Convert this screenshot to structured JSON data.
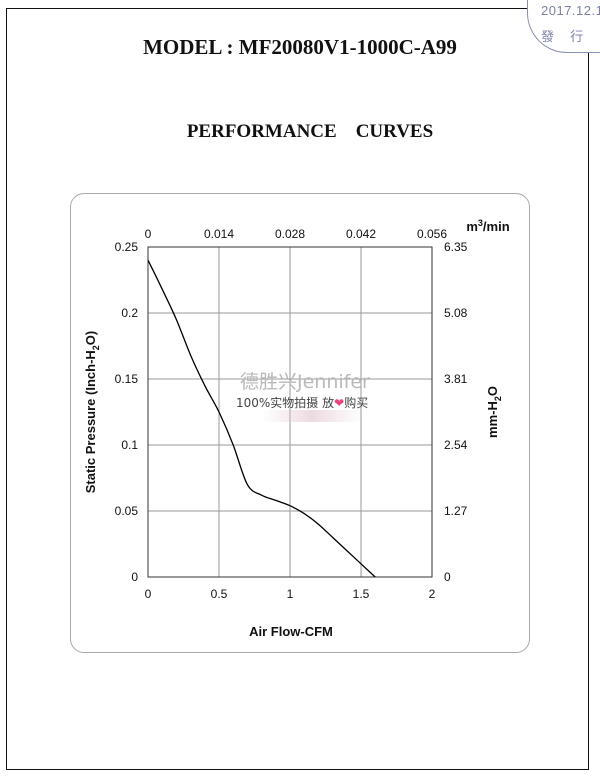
{
  "stamp": {
    "date": "2017.12.1",
    "text": "發 行 文"
  },
  "header": {
    "model": "MODEL : MF20080V1-1000C-A99",
    "subtitle": "PERFORMANCE    CURVES"
  },
  "watermark": {
    "brand": "德胜兴Jennifer",
    "tagline_a": "100%实物拍摄  放",
    "heart": "❤",
    "tagline_b": "购买"
  },
  "chart_data": {
    "type": "line",
    "xlabel": "Air Flow-CFM",
    "ylabel": "Static Pressure (Inch-H2O)",
    "xlim": [
      0,
      2
    ],
    "ylim": [
      0,
      0.25
    ],
    "x_ticks": [
      "0",
      "0.5",
      "1",
      "1.5",
      "2"
    ],
    "y_ticks": [
      "0",
      "0.05",
      "0.1",
      "0.15",
      "0.2",
      "0.25"
    ],
    "secondary_x": {
      "unit": "m3/min",
      "ticks": [
        "0",
        "0.014",
        "0.028",
        "0.042",
        "0.056"
      ]
    },
    "secondary_y": {
      "label": "mm-H2O",
      "ticks": [
        "0",
        "1.27",
        "2.54",
        "3.81",
        "5.08",
        "6.35"
      ]
    },
    "grid": true,
    "series": [
      {
        "x": [
          0,
          0.1,
          0.2,
          0.3,
          0.4,
          0.5,
          0.6,
          0.7,
          0.8,
          0.9,
          1.0,
          1.1,
          1.2,
          1.3,
          1.4,
          1.5,
          1.6
        ],
        "y": [
          0.24,
          0.218,
          0.195,
          0.168,
          0.145,
          0.125,
          0.1,
          0.07,
          0.062,
          0.058,
          0.054,
          0.048,
          0.04,
          0.03,
          0.02,
          0.01,
          0.0
        ]
      }
    ],
    "colors": {
      "line": "#000000",
      "grid": "#9a9a9a"
    }
  }
}
